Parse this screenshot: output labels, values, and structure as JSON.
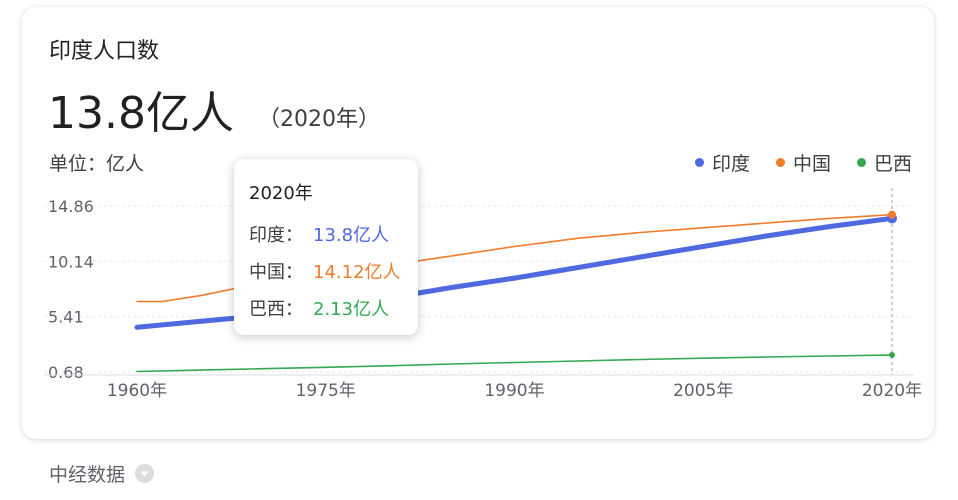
{
  "card": {
    "title": "印度人口数",
    "headline_value": "13.8亿人",
    "headline_year": "（2020年）",
    "unit_label": "单位：亿人"
  },
  "legend": [
    {
      "label": "印度",
      "color": "#4f6ae0"
    },
    {
      "label": "中国",
      "color": "#f07c2c"
    },
    {
      "label": "巴西",
      "color": "#34a853"
    }
  ],
  "tooltip": {
    "year": "2020年",
    "rows": [
      {
        "name": "印度：",
        "value": "13.8亿人",
        "color": "#4f6ae0"
      },
      {
        "name": "中国：",
        "value": "14.12亿人",
        "color": "#f07c2c"
      },
      {
        "name": "巴西：",
        "value": "2.13亿人",
        "color": "#34a853"
      }
    ]
  },
  "source": {
    "label": "中经数据",
    "icon": "chevron-down-icon"
  },
  "chart_data": {
    "type": "line",
    "title": "印度人口数",
    "ylabel": "单位：亿人",
    "ylim": [
      0.68,
      14.86
    ],
    "yticks": [
      "14.86",
      "10.14",
      "5.41",
      "0.68"
    ],
    "ytick_values": [
      14.86,
      10.14,
      5.41,
      0.68
    ],
    "xlim": [
      1960,
      2020
    ],
    "xticks": [
      "1960年",
      "1975年",
      "1990年",
      "2005年",
      "2020年"
    ],
    "xtick_values": [
      1960,
      1975,
      1990,
      2005,
      2020
    ],
    "grid": true,
    "legend_position": "top-right",
    "highlight_x": 2020,
    "series": [
      {
        "name": "印度",
        "color": "#4f6ae0",
        "x": [
          1960,
          1965,
          1970,
          1975,
          1980,
          1985,
          1990,
          1995,
          2000,
          2005,
          2010,
          2015,
          2020
        ],
        "y": [
          4.5,
          5.0,
          5.5,
          6.2,
          7.0,
          7.9,
          8.7,
          9.6,
          10.5,
          11.4,
          12.3,
          13.1,
          13.8
        ]
      },
      {
        "name": "中国",
        "color": "#f07c2c",
        "x": [
          1960,
          1962,
          1965,
          1970,
          1975,
          1980,
          1985,
          1990,
          1995,
          2000,
          2005,
          2010,
          2015,
          2020
        ],
        "y": [
          6.7,
          6.7,
          7.2,
          8.3,
          9.2,
          9.8,
          10.6,
          11.4,
          12.1,
          12.6,
          13.0,
          13.4,
          13.8,
          14.12
        ]
      },
      {
        "name": "巴西",
        "color": "#34a853",
        "x": [
          1960,
          1965,
          1970,
          1975,
          1980,
          1985,
          1990,
          1995,
          2000,
          2005,
          2010,
          2015,
          2020
        ],
        "y": [
          0.72,
          0.84,
          0.96,
          1.08,
          1.21,
          1.36,
          1.49,
          1.62,
          1.75,
          1.86,
          1.96,
          2.05,
          2.13
        ]
      }
    ]
  }
}
